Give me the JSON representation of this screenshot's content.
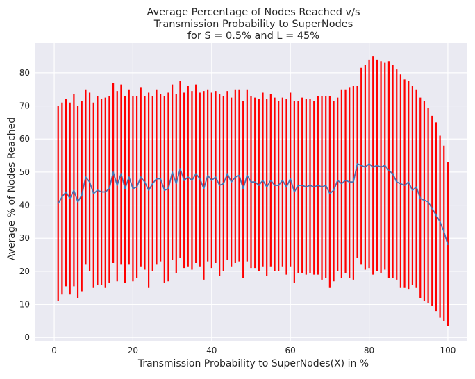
{
  "chart_data": {
    "type": "line",
    "title_lines": [
      "Average Percentage of Nodes Reached v/s",
      "Transmission Probability to SuperNodes",
      "for S = 0.5% and L = 45%"
    ],
    "xlabel": "Transmission Probability to SuperNodes(X) in %",
    "ylabel": "Average % of Nodes Reached",
    "xlim": [
      -4.95,
      104.95
    ],
    "ylim": [
      -1.0,
      89.0
    ],
    "xticks": [
      0,
      20,
      40,
      60,
      80,
      100
    ],
    "yticks": [
      0,
      10,
      20,
      30,
      40,
      50,
      60,
      70,
      80
    ],
    "grid": true,
    "background_color": "#eaeaf2",
    "line_color": "#4c72b0",
    "errorbar_color": "#ff0000",
    "x": [
      1,
      2,
      3,
      4,
      5,
      6,
      7,
      8,
      9,
      10,
      11,
      12,
      13,
      14,
      15,
      16,
      17,
      18,
      19,
      20,
      21,
      22,
      23,
      24,
      25,
      26,
      27,
      28,
      29,
      30,
      31,
      32,
      33,
      34,
      35,
      36,
      37,
      38,
      39,
      40,
      41,
      42,
      43,
      44,
      45,
      46,
      47,
      48,
      49,
      50,
      51,
      52,
      53,
      54,
      55,
      56,
      57,
      58,
      59,
      60,
      61,
      62,
      63,
      64,
      65,
      66,
      67,
      68,
      69,
      70,
      71,
      72,
      73,
      74,
      75,
      76,
      77,
      78,
      79,
      80,
      81,
      82,
      83,
      84,
      85,
      86,
      87,
      88,
      89,
      90,
      91,
      92,
      93,
      94,
      95,
      96,
      97,
      98,
      99,
      100
    ],
    "series": [
      {
        "values": [
          40.5,
          42.5,
          44.0,
          42.0,
          44.5,
          41.0,
          43.0,
          48.5,
          47.0,
          43.5,
          44.5,
          44.0,
          44.0,
          45.0,
          50.0,
          46.0,
          49.5,
          45.0,
          48.5,
          45.0,
          45.5,
          48.5,
          47.0,
          44.5,
          46.5,
          48.0,
          48.0,
          44.5,
          45.0,
          50.0,
          46.5,
          51.0,
          47.5,
          48.5,
          47.5,
          49.5,
          48.0,
          45.0,
          49.0,
          47.5,
          48.5,
          46.0,
          46.5,
          49.5,
          47.0,
          48.5,
          49.0,
          45.0,
          49.0,
          47.0,
          47.0,
          46.0,
          47.5,
          45.5,
          47.5,
          46.0,
          46.0,
          47.5,
          45.5,
          48.0,
          44.0,
          46.0,
          46.0,
          45.5,
          46.0,
          45.5,
          46.0,
          45.5,
          46.0,
          43.5,
          44.5,
          47.5,
          46.5,
          47.5,
          47.0,
          47.0,
          52.5,
          52.0,
          51.5,
          52.5,
          51.5,
          52.0,
          51.5,
          52.0,
          50.5,
          49.5,
          47.0,
          46.5,
          46.0,
          47.0,
          44.5,
          45.5,
          42.0,
          41.5,
          41.0,
          39.0,
          37.0,
          35.0,
          32.0,
          28.0
        ],
        "upper": [
          70.0,
          71.0,
          72.0,
          71.0,
          73.5,
          70.0,
          71.5,
          75.0,
          74.0,
          71.0,
          73.0,
          72.0,
          72.5,
          73.0,
          77.0,
          74.5,
          76.5,
          73.0,
          75.0,
          73.0,
          73.0,
          75.5,
          73.0,
          74.0,
          73.0,
          75.0,
          73.5,
          73.0,
          74.0,
          76.5,
          73.5,
          77.5,
          74.0,
          76.0,
          74.5,
          76.5,
          74.0,
          74.5,
          75.0,
          74.0,
          74.5,
          73.5,
          73.0,
          74.5,
          72.5,
          75.0,
          75.0,
          71.5,
          75.0,
          73.0,
          72.5,
          72.0,
          74.0,
          72.0,
          73.5,
          72.5,
          71.5,
          72.5,
          72.0,
          74.0,
          71.5,
          71.5,
          72.5,
          72.0,
          72.0,
          71.5,
          73.0,
          73.0,
          73.0,
          73.0,
          71.5,
          72.5,
          75.0,
          75.0,
          75.5,
          76.0,
          76.0,
          81.5,
          82.5,
          84.0,
          85.0,
          84.0,
          83.5,
          83.0,
          83.5,
          82.5,
          81.0,
          79.5,
          78.0,
          77.5,
          76.0,
          75.0,
          72.5,
          71.5,
          69.5,
          67.0,
          65.0,
          61.0,
          58.0,
          53.0
        ],
        "lower": [
          11.0,
          13.0,
          15.5,
          13.0,
          15.5,
          12.0,
          14.0,
          22.0,
          20.0,
          15.0,
          16.0,
          16.0,
          15.0,
          16.5,
          22.5,
          17.0,
          22.0,
          16.5,
          22.0,
          17.0,
          18.0,
          21.5,
          20.5,
          15.0,
          20.0,
          22.0,
          23.0,
          16.5,
          17.0,
          23.5,
          19.5,
          24.0,
          21.0,
          21.5,
          20.5,
          22.5,
          21.5,
          17.5,
          23.0,
          21.0,
          22.5,
          18.5,
          20.0,
          23.5,
          21.5,
          22.5,
          23.0,
          18.0,
          23.0,
          21.0,
          21.0,
          20.0,
          21.5,
          18.5,
          21.5,
          20.0,
          20.0,
          21.5,
          19.0,
          21.5,
          16.5,
          19.5,
          19.5,
          19.0,
          19.5,
          19.0,
          19.0,
          17.5,
          18.0,
          15.0,
          17.0,
          20.0,
          18.0,
          19.5,
          18.0,
          17.5,
          24.0,
          22.0,
          20.5,
          21.0,
          19.0,
          20.0,
          19.5,
          20.5,
          18.0,
          18.0,
          17.5,
          15.0,
          15.0,
          14.5,
          16.0,
          15.0,
          12.0,
          11.0,
          10.5,
          9.5,
          8.0,
          6.0,
          5.0,
          3.5
        ]
      }
    ]
  }
}
